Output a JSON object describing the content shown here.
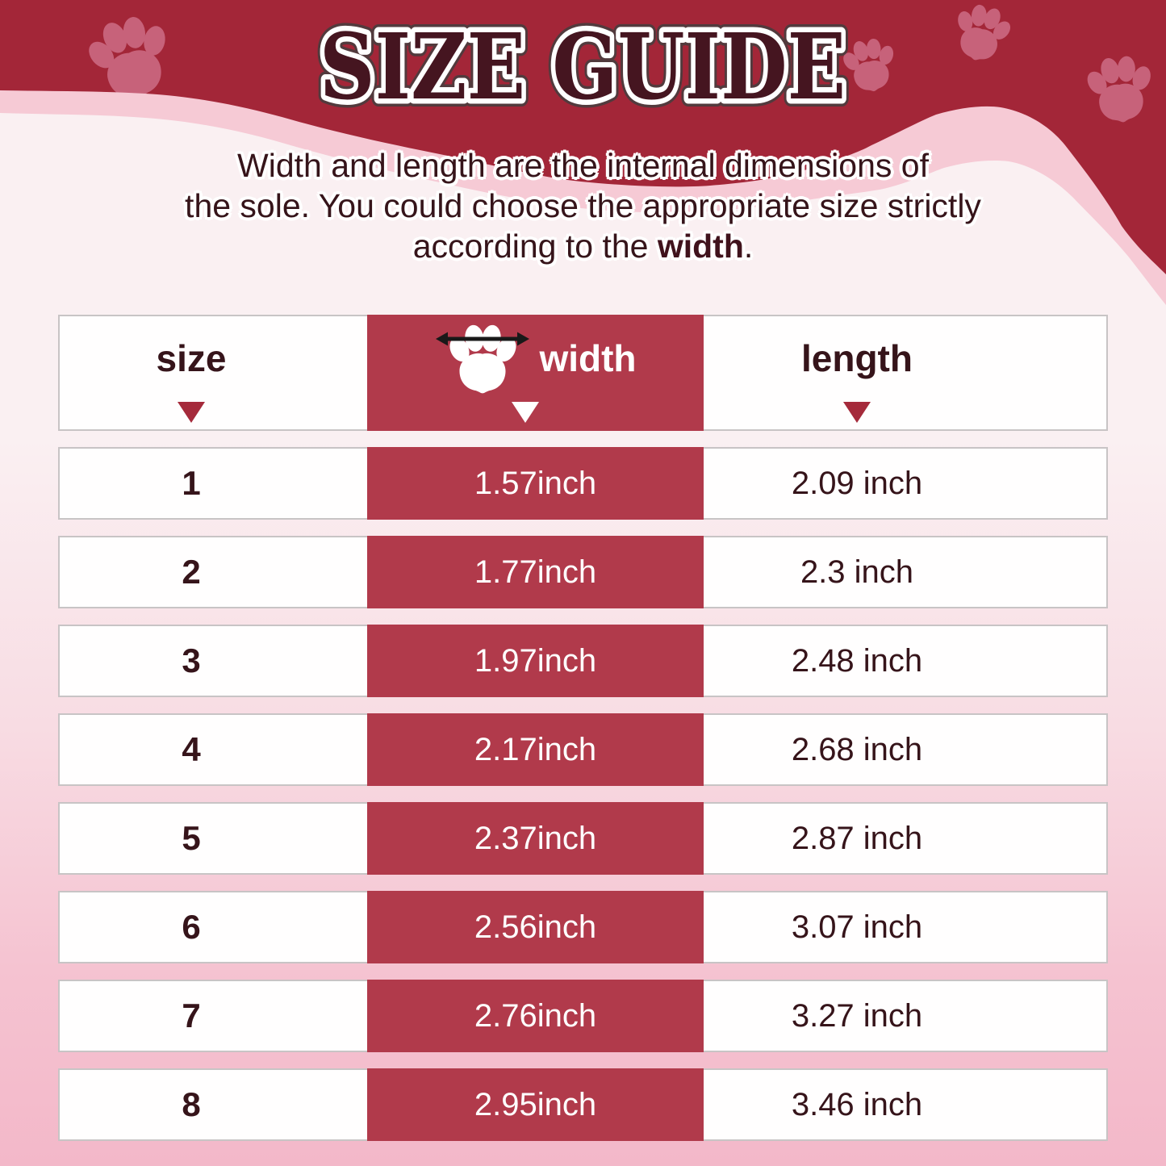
{
  "title": "SIZE GUIDE",
  "description": {
    "line1": "Width and length are the internal dimensions of",
    "line2": "the sole. You could choose the appropriate size strictly",
    "line3_prefix": "according to the ",
    "line3_bold": "width",
    "line3_suffix": "."
  },
  "table": {
    "columns": {
      "size": "size",
      "width": "width",
      "length": "length"
    },
    "rows": [
      {
        "size": "1",
        "width": "1.57inch",
        "length": "2.09 inch"
      },
      {
        "size": "2",
        "width": "1.77inch",
        "length": "2.3 inch"
      },
      {
        "size": "3",
        "width": "1.97inch",
        "length": "2.48 inch"
      },
      {
        "size": "4",
        "width": "2.17inch",
        "length": "2.68 inch"
      },
      {
        "size": "5",
        "width": "2.37inch",
        "length": "2.87 inch"
      },
      {
        "size": "6",
        "width": "2.56inch",
        "length": "3.07 inch"
      },
      {
        "size": "7",
        "width": "2.76inch",
        "length": "3.27 inch"
      },
      {
        "size": "8",
        "width": "2.95inch",
        "length": "3.46 inch"
      }
    ]
  },
  "icons": {
    "paw_print": "paw-print-icon",
    "width_measure": "horizontal-double-arrow-icon",
    "column_marker": "triangle-down-icon"
  },
  "colors": {
    "header_red": "#a32638",
    "cell_red": "#b13a4b",
    "paw_pink": "#c7627a",
    "wave_pink": "#f6cad5",
    "content_top": "#faf0f2",
    "content_bottom": "#f3b8c9",
    "dark_text": "#36141a",
    "title_fill": "#451520",
    "triangle_red": "#a52a3b",
    "row_border": "#c8c4c5"
  }
}
